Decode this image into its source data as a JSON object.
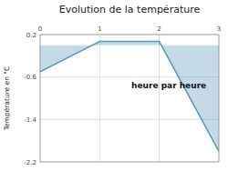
{
  "chart_data": {
    "type": "area",
    "title": "Evolution de la température",
    "y_label": "Température en °C",
    "annotation": "heure par heure",
    "x": [
      0,
      1,
      2,
      3
    ],
    "values": [
      -0.5,
      0.07,
      0.07,
      -2.0
    ],
    "color": "#5599bb",
    "xlim": [
      0,
      3
    ],
    "ylim": [
      -2.2,
      0.2
    ],
    "xticks": [
      0,
      1,
      2,
      3
    ],
    "yticks": [
      0.2,
      -0.6,
      -1.4,
      -2.2
    ],
    "grid": true
  }
}
